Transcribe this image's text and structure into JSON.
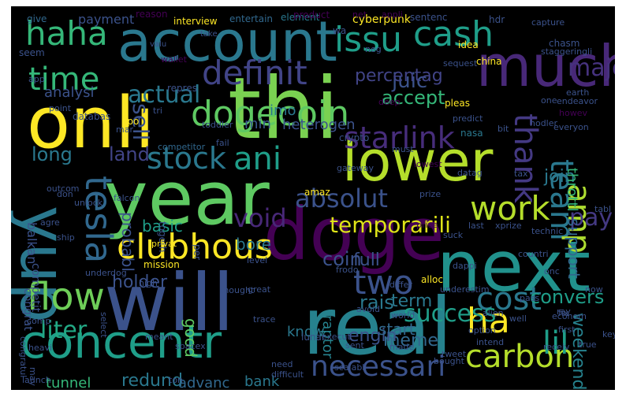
{
  "wordcloud": {
    "background": "#000000",
    "words": [
      {
        "text": "thi",
        "color": "#7ad151"
      },
      {
        "text": "year",
        "color": "#5ec962"
      },
      {
        "text": "will",
        "color": "#3b528b"
      },
      {
        "text": "doge",
        "color": "#440154"
      },
      {
        "text": "real",
        "color": "#26828e"
      },
      {
        "text": "onli",
        "color": "#fde725"
      },
      {
        "text": "next",
        "color": "#21918c"
      },
      {
        "text": "account",
        "color": "#2a788e"
      },
      {
        "text": "much",
        "color": "#482878"
      },
      {
        "text": "yup",
        "color": "#2a788e"
      },
      {
        "text": "lower",
        "color": "#b5de2b"
      },
      {
        "text": "concentr",
        "color": "#1f9e89"
      },
      {
        "text": "dogecoin",
        "color": "#5ec962"
      },
      {
        "text": "flow",
        "color": "#6ece58"
      },
      {
        "text": "starlink",
        "color": "#472d7b"
      },
      {
        "text": "tesla",
        "color": "#31688e"
      },
      {
        "text": "clubhous",
        "color": "#fde725"
      },
      {
        "text": "work",
        "color": "#b5de2b"
      },
      {
        "text": "carbon",
        "color": "#b5de2b"
      },
      {
        "text": "haha",
        "color": "#35b779"
      },
      {
        "text": "issu",
        "color": "#1f9e89"
      },
      {
        "text": "cash",
        "color": "#1f9e89"
      },
      {
        "text": "definit",
        "color": "#414487"
      },
      {
        "text": "time",
        "color": "#35b779"
      },
      {
        "text": "stock",
        "color": "#2a788e"
      },
      {
        "text": "ani",
        "color": "#1f9e89"
      },
      {
        "text": "team",
        "color": "#2a788e"
      },
      {
        "text": "thank",
        "color": "#443983"
      },
      {
        "text": "cost",
        "color": "#2a788e"
      },
      {
        "text": "two",
        "color": "#3b528b"
      },
      {
        "text": "lil",
        "color": "#1f9e89"
      },
      {
        "text": "ha",
        "color": "#fde725"
      },
      {
        "text": "amp",
        "color": "#addc30"
      },
      {
        "text": "absolut",
        "color": "#3b528b"
      },
      {
        "text": "void",
        "color": "#482878"
      },
      {
        "text": "pay",
        "color": "#443983"
      },
      {
        "text": "temporarili",
        "color": "#dde318"
      },
      {
        "text": "necessari",
        "color": "#3b528b"
      },
      {
        "text": "liter",
        "color": "#22a884"
      },
      {
        "text": "actual",
        "color": "#2a788e"
      },
      {
        "text": "juic",
        "color": "#3b528b"
      },
      {
        "text": "percentag",
        "color": "#414487"
      },
      {
        "text": "major",
        "color": "#46327e"
      },
      {
        "text": "accept",
        "color": "#35b779"
      },
      {
        "text": "join",
        "color": "#2a788e"
      },
      {
        "text": "sell",
        "color": "#3b528b"
      },
      {
        "text": "support",
        "color": "#31688e"
      },
      {
        "text": "throttl",
        "color": "#35b779"
      },
      {
        "text": "long",
        "color": "#2a788e"
      },
      {
        "text": "land",
        "color": "#414487"
      },
      {
        "text": "imo",
        "color": "#2a788e"
      },
      {
        "text": "min",
        "color": "#39568c"
      },
      {
        "text": "heterogen",
        "color": "#3b528b"
      },
      {
        "text": "analysi",
        "color": "#3b528b"
      },
      {
        "text": "probabl",
        "color": "#3b528b"
      },
      {
        "text": "basic",
        "color": "#1f9e89"
      },
      {
        "text": "bore",
        "color": "#2a788e"
      },
      {
        "text": "coin",
        "color": "#3b528b"
      },
      {
        "text": "full",
        "color": "#3b528b"
      },
      {
        "text": "holder",
        "color": "#3b528b"
      },
      {
        "text": "success",
        "color": "#1f9e89"
      },
      {
        "text": "convers",
        "color": "#1f9e89"
      },
      {
        "text": "weekend",
        "color": "#26828e"
      },
      {
        "text": "rais",
        "color": "#2a788e"
      },
      {
        "text": "term",
        "color": "#2a788e"
      },
      {
        "text": "meme",
        "color": "#31688e"
      },
      {
        "text": "know",
        "color": "#2a788e"
      },
      {
        "text": "good",
        "color": "#5ec962"
      },
      {
        "text": "raptor",
        "color": "#26828e"
      },
      {
        "text": "engin",
        "color": "#3b528b"
      },
      {
        "text": "start",
        "color": "#31688e"
      },
      {
        "text": "tunnel",
        "color": "#35b779"
      },
      {
        "text": "redund",
        "color": "#2a788e"
      },
      {
        "text": "advanc",
        "color": "#31688e"
      },
      {
        "text": "bank",
        "color": "#2a788e"
      },
      {
        "text": "congrat",
        "color": "#3b528b"
      },
      {
        "text": "balkan",
        "color": "#3b528b"
      },
      {
        "text": "competit",
        "color": "#3b528b"
      },
      {
        "text": "payment",
        "color": "#3b528b"
      },
      {
        "text": "interview",
        "color": "#fde725"
      },
      {
        "text": "entertain",
        "color": "#31688e"
      },
      {
        "text": "element",
        "color": "#2a788e"
      },
      {
        "text": "cyberpunk",
        "color": "#fde725"
      },
      {
        "text": "sentenc",
        "color": "#3b528b"
      },
      {
        "text": "give",
        "color": "#31688e"
      },
      {
        "text": "reason",
        "color": "#440154"
      },
      {
        "text": "product",
        "color": "#440154"
      },
      {
        "text": "net",
        "color": "#440154"
      },
      {
        "text": "appli",
        "color": "#440154"
      },
      {
        "text": "hdr",
        "color": "#3b528b"
      },
      {
        "text": "wa",
        "color": "#3b528b"
      },
      {
        "text": "valu",
        "color": "#3b528b"
      },
      {
        "text": "take",
        "color": "#3b528b"
      },
      {
        "text": "wallet",
        "color": "#440154"
      },
      {
        "text": "idea",
        "color": "#fde725"
      },
      {
        "text": "chasm",
        "color": "#3b528b"
      },
      {
        "text": "seem",
        "color": "#3b528b"
      },
      {
        "text": "china",
        "color": "#fde725"
      },
      {
        "text": "repres",
        "color": "#3b528b"
      },
      {
        "text": "sequest",
        "color": "#3b528b"
      },
      {
        "text": "neg",
        "color": "#3b528b"
      },
      {
        "text": "earth",
        "color": "#3b528b"
      },
      {
        "text": "howev",
        "color": "#440154"
      },
      {
        "text": "ipo",
        "color": "#fde725"
      },
      {
        "text": "databas",
        "color": "#3b528b"
      },
      {
        "text": "pleas",
        "color": "#fde725"
      },
      {
        "text": "predict",
        "color": "#3b528b"
      },
      {
        "text": "hodler",
        "color": "#3b528b"
      },
      {
        "text": "one",
        "color": "#3b528b"
      },
      {
        "text": "tri",
        "color": "#3b528b"
      },
      {
        "text": "mar",
        "color": "#3b528b"
      },
      {
        "text": "toddler",
        "color": "#3b528b"
      },
      {
        "text": "competitor",
        "color": "#31688e"
      },
      {
        "text": "crypto",
        "color": "#3b528b"
      },
      {
        "text": "deep",
        "color": "#440154"
      },
      {
        "text": "nasa",
        "color": "#2a788e"
      },
      {
        "text": "bit",
        "color": "#3b528b"
      },
      {
        "text": "everyon",
        "color": "#3b528b"
      },
      {
        "text": "may",
        "color": "#3b528b"
      },
      {
        "text": "don",
        "color": "#3b528b"
      },
      {
        "text": "outcom",
        "color": "#3b528b"
      },
      {
        "text": "unlock",
        "color": "#3b528b"
      },
      {
        "text": "amaz",
        "color": "#fde725"
      },
      {
        "text": "gateway",
        "color": "#3b528b"
      },
      {
        "text": "must",
        "color": "#3b528b"
      },
      {
        "text": "lowest",
        "color": "#440154"
      },
      {
        "text": "price",
        "color": "#440154"
      },
      {
        "text": "last",
        "color": "#3b528b"
      },
      {
        "text": "prize",
        "color": "#3b528b"
      },
      {
        "text": "agre",
        "color": "#3b528b"
      },
      {
        "text": "ship",
        "color": "#3b528b"
      },
      {
        "text": "togeth",
        "color": "#3b528b"
      },
      {
        "text": "privat",
        "color": "#fde725"
      },
      {
        "text": "falcon",
        "color": "#3b528b"
      },
      {
        "text": "tabl",
        "color": "#3b528b"
      },
      {
        "text": "ray",
        "color": "#3b528b"
      },
      {
        "text": "mission",
        "color": "#fde725"
      },
      {
        "text": "differ",
        "color": "#3b528b"
      },
      {
        "text": "alloc",
        "color": "#fde725"
      },
      {
        "text": "countri",
        "color": "#3b528b"
      },
      {
        "text": "key",
        "color": "#3b528b"
      },
      {
        "text": "onc",
        "color": "#3b528b"
      },
      {
        "text": "level",
        "color": "#3b528b"
      },
      {
        "text": "great",
        "color": "#3b528b"
      },
      {
        "text": "dappi",
        "color": "#3b528b"
      },
      {
        "text": "underdog",
        "color": "#3b528b"
      },
      {
        "text": "high",
        "color": "#3b528b"
      },
      {
        "text": "thought",
        "color": "#3b528b"
      },
      {
        "text": "world",
        "color": "#3b528b"
      },
      {
        "text": "alien",
        "color": "#3b528b"
      },
      {
        "text": "now",
        "color": "#3b528b"
      },
      {
        "text": "underestim",
        "color": "#3b528b"
      },
      {
        "text": "pass",
        "color": "#3b528b"
      },
      {
        "text": "well",
        "color": "#3b528b"
      },
      {
        "text": "econom",
        "color": "#3b528b"
      },
      {
        "text": "select",
        "color": "#3b528b"
      },
      {
        "text": "fix",
        "color": "#3b528b"
      },
      {
        "text": "true",
        "color": "#3b528b"
      },
      {
        "text": "congratul",
        "color": "#3b528b"
      },
      {
        "text": "meant",
        "color": "#3b528b"
      },
      {
        "text": "lunar",
        "color": "#3b528b"
      },
      {
        "text": "first",
        "color": "#3b528b"
      },
      {
        "text": "comp",
        "color": "#3b528b"
      },
      {
        "text": "heavi",
        "color": "#3b528b"
      },
      {
        "text": "spacex",
        "color": "#3b528b"
      },
      {
        "text": "need",
        "color": "#3b528b"
      },
      {
        "text": "execut",
        "color": "#3b528b"
      },
      {
        "text": "sent",
        "color": "#3b528b"
      },
      {
        "text": "scalabl",
        "color": "#3b528b"
      },
      {
        "text": "made",
        "color": "#3b528b"
      },
      {
        "text": "bought",
        "color": "#3b528b"
      },
      {
        "text": "intend",
        "color": "#3b528b"
      },
      {
        "text": "option",
        "color": "#3b528b"
      },
      {
        "text": "ton",
        "color": "#3b528b"
      },
      {
        "text": "launch",
        "color": "#3b528b"
      },
      {
        "text": "difficult",
        "color": "#3b528b"
      },
      {
        "text": "tweet",
        "color": "#3b528b"
      },
      {
        "text": "suck",
        "color": "#3b528b"
      },
      {
        "text": "technic",
        "color": "#3b528b"
      },
      {
        "text": "xprize",
        "color": "#3b528b"
      },
      {
        "text": "receiv",
        "color": "#3b528b"
      },
      {
        "text": "avoid",
        "color": "#3b528b"
      },
      {
        "text": "trace",
        "color": "#3b528b"
      },
      {
        "text": "frodo",
        "color": "#3b528b"
      },
      {
        "text": "fail",
        "color": "#3b528b"
      },
      {
        "text": "per",
        "color": "#3b528b"
      },
      {
        "text": "app",
        "color": "#3b528b"
      },
      {
        "text": "point",
        "color": "#3b528b"
      },
      {
        "text": "datag",
        "color": "#3b528b"
      },
      {
        "text": "tax",
        "color": "#3b528b"
      },
      {
        "text": "capture",
        "color": "#3b528b"
      },
      {
        "text": "staggeringli",
        "color": "#3b528b"
      },
      {
        "text": "endeavor",
        "color": "#3b528b"
      },
      {
        "text": "mass",
        "color": "#3b528b"
      }
    ]
  }
}
